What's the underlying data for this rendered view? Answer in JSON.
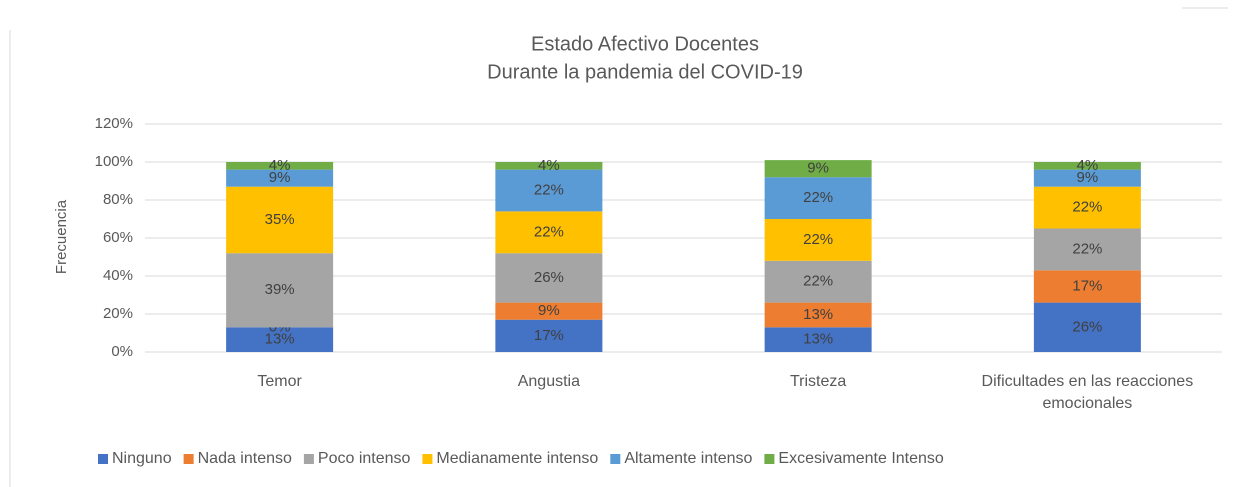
{
  "chart_data": {
    "type": "stacked_bar",
    "title": "Estado Afectivo Docentes",
    "subtitle": "Durante la pandemia del COVID-19",
    "y_label": "Frecuencia",
    "categories": [
      "Temor",
      "Angustia",
      "Tristeza",
      "Dificultades en las reacciones emocionales"
    ],
    "series": [
      {
        "name": "Ninguno",
        "color": "#4472c4",
        "values": [
          13,
          17,
          13,
          26
        ],
        "value_labels": [
          "13%",
          "17%",
          "13%",
          "26%"
        ]
      },
      {
        "name": "Nada intenso",
        "color": "#ed7d31",
        "values": [
          0,
          9,
          13,
          17
        ],
        "value_labels": [
          "0%",
          "9%",
          "13%",
          "17%"
        ]
      },
      {
        "name": "Poco intenso",
        "color": "#a5a5a5",
        "values": [
          39,
          26,
          22,
          22
        ],
        "value_labels": [
          "39%",
          "26%",
          "22%",
          "22%"
        ]
      },
      {
        "name": "Medianamente intenso",
        "color": "#ffc000",
        "values": [
          35,
          22,
          22,
          22
        ],
        "value_labels": [
          "35%",
          "22%",
          "22%",
          "22%"
        ]
      },
      {
        "name": "Altamente intenso",
        "color": "#5b9bd5",
        "values": [
          9,
          22,
          22,
          9
        ],
        "value_labels": [
          "9%",
          "22%",
          "22%",
          "9%"
        ]
      },
      {
        "name": "Excesivamente Intenso",
        "color": "#70ad47",
        "values": [
          4,
          4,
          9,
          4
        ],
        "value_labels": [
          "4%",
          "4%",
          "9%",
          "4%"
        ]
      }
    ],
    "ylim": [
      0,
      120
    ],
    "yticks": [
      {
        "value": 0,
        "label": "0%"
      },
      {
        "value": 20,
        "label": "20%"
      },
      {
        "value": 40,
        "label": "40%"
      },
      {
        "value": 60,
        "label": "60%"
      },
      {
        "value": 80,
        "label": "80%"
      },
      {
        "value": 100,
        "label": "100%"
      },
      {
        "value": 120,
        "label": "120%"
      }
    ],
    "grid": true,
    "legend": "bottom"
  }
}
